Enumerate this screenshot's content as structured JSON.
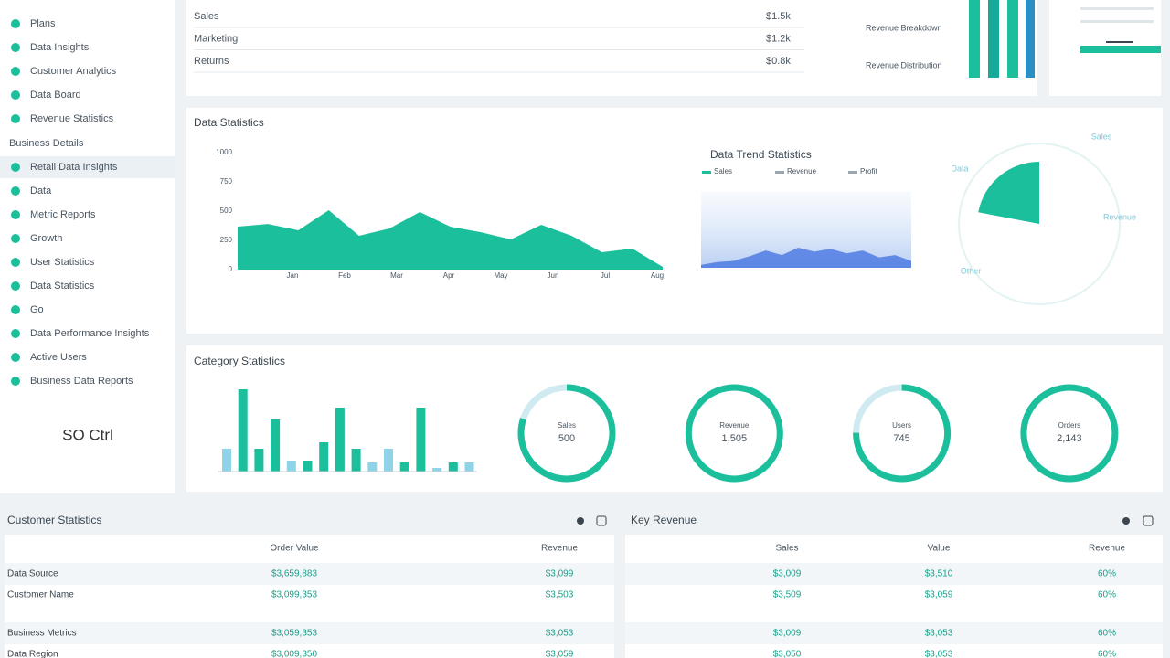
{
  "sidebar": {
    "items": [
      "Plans",
      "Data Insights",
      "Customer Analytics",
      "Data Board",
      "Revenue Statistics"
    ],
    "section": "Business Details",
    "section_items": [
      "Retail Data Insights",
      "Data",
      "Metric Reports",
      "Growth",
      "User Statistics",
      "Data Statistics",
      "Go",
      "Data Performance Insights",
      "Active Users",
      "Business Data Reports"
    ],
    "footer": "SO Ctrl"
  },
  "summary": {
    "rows": [
      {
        "label": "Sales",
        "value": "$1.5k"
      },
      {
        "label": "Marketing",
        "value": "$1.2k"
      },
      {
        "label": "Returns",
        "value": "$0.8k"
      }
    ],
    "breakdown": [
      "Revenue Breakdown",
      "Revenue Distribution"
    ]
  },
  "overview": {
    "title": "Data Statistics",
    "area": {
      "type": "area",
      "color": "#1bbf9c",
      "values": [
        367,
        390,
        336,
        508,
        289,
        352,
        492,
        367,
        320,
        258,
        383,
        289,
        148,
        180,
        23
      ],
      "xticks": [
        "Jan",
        "Feb",
        "Mar",
        "Apr",
        "May",
        "Jun",
        "Jul",
        "Aug"
      ],
      "ylim": [
        0,
        1000
      ],
      "yticks": [
        0,
        250,
        500,
        750,
        1000
      ]
    },
    "trend": {
      "type": "area",
      "title": "Data Trend Statistics",
      "legend": [
        "Sales",
        "Revenue",
        "Profit"
      ],
      "color": "#3f6fe0",
      "values": [
        5,
        10,
        12,
        20,
        30,
        22,
        35,
        28,
        33,
        25,
        30,
        18,
        22,
        12
      ],
      "ylim": [
        0,
        100
      ]
    },
    "pie": {
      "type": "pie",
      "color": "#1bbf9c",
      "values": [
        22
      ],
      "annotations": [
        "Sales",
        "Data",
        "Revenue",
        "Other"
      ]
    }
  },
  "categories": {
    "title": "Category Statistics",
    "bars": {
      "type": "bar",
      "values": [
        25,
        90,
        25,
        57,
        12,
        12,
        32,
        70,
        25,
        10,
        25,
        10,
        70,
        4,
        10,
        10
      ],
      "colors": [
        "#8fd3e8",
        "#1bbf9c",
        "#1bbf9c",
        "#1bbf9c",
        "#8fd3e8",
        "#1bbf9c",
        "#1bbf9c",
        "#1bbf9c",
        "#1bbf9c",
        "#8fd3e8",
        "#8fd3e8",
        "#1bbf9c",
        "#1bbf9c",
        "#8fd3e8",
        "#1bbf9c",
        "#8fd3e8"
      ],
      "ylim": [
        0,
        100
      ]
    },
    "gauges": [
      {
        "label": "Sales",
        "value_label": "500",
        "percent": 80
      },
      {
        "label": "Revenue",
        "value_label": "1,505",
        "percent": 100
      },
      {
        "label": "Users",
        "value_label": "745",
        "percent": 75
      },
      {
        "label": "Orders",
        "value_label": "2,143",
        "percent": 100
      }
    ]
  },
  "tables": [
    {
      "title": "Customer Statistics",
      "columns": [
        "Order Value",
        "Revenue"
      ],
      "rows": [
        [
          "Data Source",
          "$3,659,883",
          "$3,099"
        ],
        [
          "Customer Name",
          "$3,099,353",
          "$3,503"
        ],
        [
          "Business Metrics",
          "$3,059,353",
          "$3,053"
        ],
        [
          "Data Region",
          "$3,009,350",
          "$3,059"
        ]
      ]
    },
    {
      "title": "Key Revenue",
      "columns": [
        "Sales",
        "Value",
        "Revenue"
      ],
      "rows": [
        [
          "$3,009",
          "$3,510",
          "60%"
        ],
        [
          "$3,509",
          "$3,059",
          "60%"
        ],
        [
          "$3,009",
          "$3,053",
          "60%"
        ],
        [
          "$3,050",
          "$3,053",
          "60%"
        ]
      ]
    }
  ]
}
